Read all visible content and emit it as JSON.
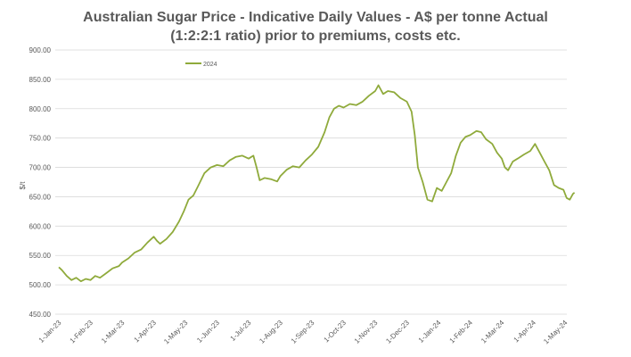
{
  "chart_data": {
    "type": "line",
    "title_line1": "Australian Sugar Price - Indicative Daily Values - A$ per tonne Actual",
    "title_line2": "(1:2:2:1 ratio) prior to premiums, costs etc.",
    "ylabel": "$/t",
    "xlabel": "",
    "ylim": [
      450,
      900
    ],
    "y_ticks": [
      "450.00",
      "500.00",
      "550.00",
      "600.00",
      "650.00",
      "700.00",
      "750.00",
      "800.00",
      "850.00",
      "900.00"
    ],
    "y_tick_values": [
      450,
      500,
      550,
      600,
      650,
      700,
      750,
      800,
      850,
      900
    ],
    "x_tick_labels": [
      "1-Jan-23",
      "1-Feb-23",
      "1-Mar-23",
      "1-Apr-23",
      "1-May-23",
      "1-Jun-23",
      "1-Jul-23",
      "1-Aug-23",
      "1-Sep-23",
      "1-Oct-23",
      "1-Nov-23",
      "1-Dec-23",
      "1-Jan-24",
      "1-Feb-24",
      "1-Mar-24",
      "1-Apr-24",
      "1-May-24"
    ],
    "x_range": [
      0,
      16.35
    ],
    "grid": true,
    "legend_position": "top-left",
    "series": [
      {
        "name": "2024",
        "color": "#8faa3b",
        "points": [
          [
            0.0,
            530
          ],
          [
            0.1,
            525
          ],
          [
            0.25,
            515
          ],
          [
            0.4,
            508
          ],
          [
            0.55,
            512
          ],
          [
            0.7,
            506
          ],
          [
            0.85,
            510
          ],
          [
            1.0,
            508
          ],
          [
            1.15,
            515
          ],
          [
            1.3,
            512
          ],
          [
            1.5,
            520
          ],
          [
            1.7,
            528
          ],
          [
            1.9,
            532
          ],
          [
            2.0,
            538
          ],
          [
            2.2,
            545
          ],
          [
            2.4,
            555
          ],
          [
            2.6,
            560
          ],
          [
            2.8,
            572
          ],
          [
            3.0,
            582
          ],
          [
            3.1,
            575
          ],
          [
            3.2,
            570
          ],
          [
            3.4,
            578
          ],
          [
            3.6,
            590
          ],
          [
            3.8,
            608
          ],
          [
            3.95,
            625
          ],
          [
            4.1,
            645
          ],
          [
            4.25,
            652
          ],
          [
            4.4,
            668
          ],
          [
            4.6,
            690
          ],
          [
            4.8,
            700
          ],
          [
            5.0,
            704
          ],
          [
            5.2,
            702
          ],
          [
            5.4,
            712
          ],
          [
            5.6,
            718
          ],
          [
            5.8,
            720
          ],
          [
            6.0,
            715
          ],
          [
            6.15,
            720
          ],
          [
            6.25,
            700
          ],
          [
            6.35,
            678
          ],
          [
            6.5,
            682
          ],
          [
            6.7,
            680
          ],
          [
            6.9,
            676
          ],
          [
            7.0,
            685
          ],
          [
            7.2,
            696
          ],
          [
            7.4,
            702
          ],
          [
            7.6,
            700
          ],
          [
            7.8,
            712
          ],
          [
            8.0,
            722
          ],
          [
            8.2,
            735
          ],
          [
            8.4,
            760
          ],
          [
            8.55,
            785
          ],
          [
            8.7,
            800
          ],
          [
            8.85,
            805
          ],
          [
            9.0,
            802
          ],
          [
            9.2,
            808
          ],
          [
            9.4,
            806
          ],
          [
            9.6,
            812
          ],
          [
            9.8,
            822
          ],
          [
            10.0,
            830
          ],
          [
            10.1,
            840
          ],
          [
            10.25,
            825
          ],
          [
            10.4,
            830
          ],
          [
            10.6,
            828
          ],
          [
            10.8,
            818
          ],
          [
            11.0,
            812
          ],
          [
            11.15,
            795
          ],
          [
            11.25,
            755
          ],
          [
            11.35,
            700
          ],
          [
            11.5,
            675
          ],
          [
            11.65,
            645
          ],
          [
            11.8,
            642
          ],
          [
            11.95,
            665
          ],
          [
            12.1,
            660
          ],
          [
            12.25,
            675
          ],
          [
            12.4,
            690
          ],
          [
            12.55,
            720
          ],
          [
            12.7,
            742
          ],
          [
            12.85,
            752
          ],
          [
            13.0,
            755
          ],
          [
            13.2,
            762
          ],
          [
            13.35,
            760
          ],
          [
            13.5,
            748
          ],
          [
            13.7,
            740
          ],
          [
            13.85,
            725
          ],
          [
            14.0,
            715
          ],
          [
            14.1,
            700
          ],
          [
            14.2,
            695
          ],
          [
            14.35,
            710
          ],
          [
            14.5,
            715
          ],
          [
            14.7,
            722
          ],
          [
            14.9,
            728
          ],
          [
            15.05,
            740
          ],
          [
            15.2,
            725
          ],
          [
            15.35,
            710
          ],
          [
            15.5,
            695
          ],
          [
            15.65,
            670
          ],
          [
            15.8,
            665
          ],
          [
            15.95,
            662
          ],
          [
            16.05,
            648
          ],
          [
            16.15,
            645
          ],
          [
            16.25,
            655
          ],
          [
            16.3,
            657
          ]
        ]
      }
    ]
  }
}
